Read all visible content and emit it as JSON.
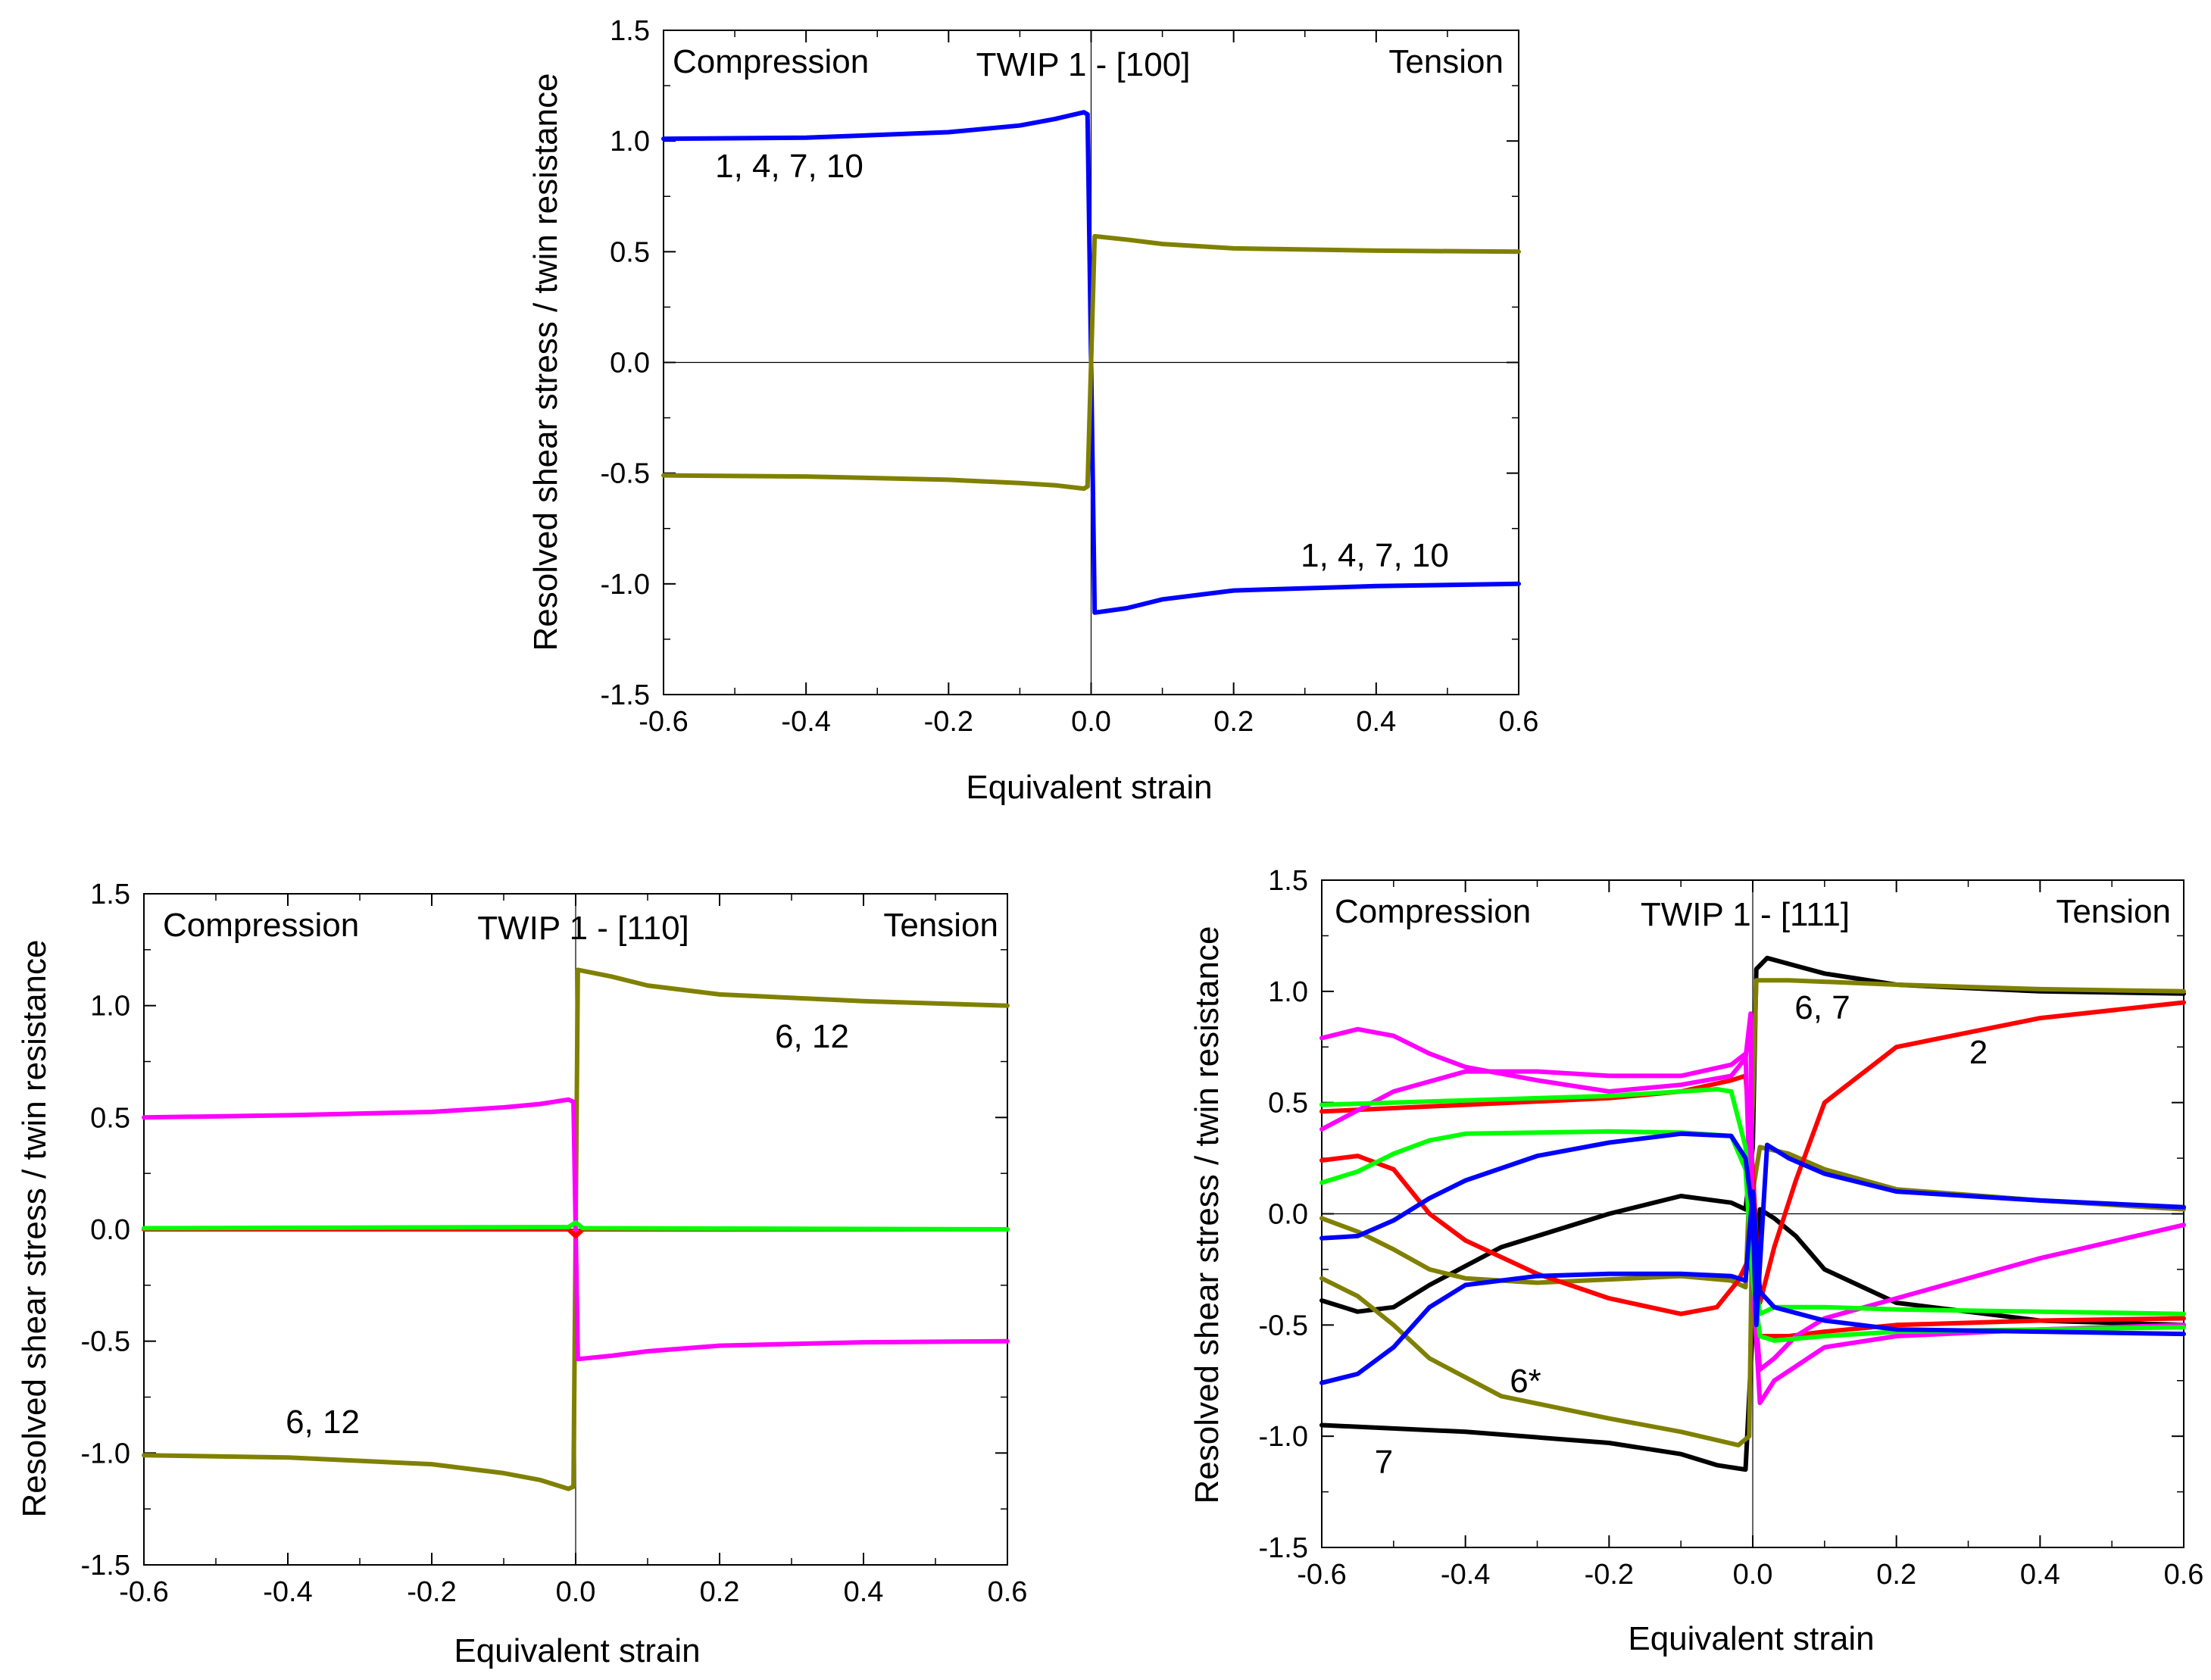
{
  "chart_data": [
    {
      "type": "line",
      "title": "TWIP 1 - [100]",
      "xlabel": "Equivalent strain",
      "ylabel": "Resolved shear stress / twin resistance",
      "xlim": [
        -0.6,
        0.6
      ],
      "ylim": [
        -1.5,
        1.5
      ],
      "xticks": [
        "-0.6",
        "-0.4",
        "-0.2",
        "0.0",
        "0.2",
        "0.4",
        "0.6"
      ],
      "yticks": [
        "1.5",
        "1.0",
        "0.5",
        "0.0",
        "-0.5",
        "-1.0",
        "-1.5"
      ],
      "annotations": [
        {
          "text": "Compression",
          "pos": "top-left"
        },
        {
          "text": "Tension",
          "pos": "top-right"
        },
        {
          "text": "1, 4, 7, 10",
          "x": -0.48,
          "y": 0.88
        },
        {
          "text": "1, 4, 7, 10",
          "x": 0.38,
          "y": -0.88
        }
      ],
      "series": [
        {
          "name": "blue-compression",
          "color": "#0000ff",
          "x": [
            -0.6,
            -0.4,
            -0.2,
            -0.1,
            -0.05,
            -0.01,
            -0.005
          ],
          "y": [
            1.01,
            1.015,
            1.04,
            1.07,
            1.1,
            1.13,
            1.12
          ]
        },
        {
          "name": "blue-tension",
          "color": "#0000ff",
          "x": [
            -0.005,
            0.0,
            0.005,
            0.05,
            0.1,
            0.2,
            0.4,
            0.6
          ],
          "y": [
            1.12,
            0.0,
            -1.13,
            -1.11,
            -1.07,
            -1.03,
            -1.01,
            -1.0
          ]
        },
        {
          "name": "olive-compression",
          "color": "#808000",
          "x": [
            -0.6,
            -0.4,
            -0.2,
            -0.1,
            -0.05,
            -0.01,
            -0.005
          ],
          "y": [
            -0.51,
            -0.515,
            -0.53,
            -0.545,
            -0.555,
            -0.57,
            -0.56
          ]
        },
        {
          "name": "olive-tension",
          "color": "#808000",
          "x": [
            -0.005,
            0.0,
            0.005,
            0.05,
            0.1,
            0.2,
            0.4,
            0.6
          ],
          "y": [
            -0.56,
            0.0,
            0.57,
            0.555,
            0.535,
            0.515,
            0.505,
            0.5
          ]
        }
      ]
    },
    {
      "type": "line",
      "title": "TWIP 1 - [110]",
      "xlabel": "Equivalent strain",
      "ylabel": "Resolved shear stress / twin resistance",
      "xlim": [
        -0.6,
        0.6
      ],
      "ylim": [
        -1.5,
        1.5
      ],
      "xticks": [
        "-0.6",
        "-0.4",
        "-0.2",
        "0.0",
        "0.2",
        "0.4",
        "0.6"
      ],
      "yticks": [
        "1.5",
        "1.0",
        "0.5",
        "0.0",
        "-0.5",
        "-1.0",
        "-1.5"
      ],
      "annotations": [
        {
          "text": "Compression",
          "pos": "top-left"
        },
        {
          "text": "Tension",
          "pos": "top-right"
        },
        {
          "text": "6, 12",
          "x": 0.26,
          "y": 0.84
        },
        {
          "text": "6, 12",
          "x": -0.42,
          "y": -0.88
        }
      ],
      "series": [
        {
          "name": "olive-compression",
          "color": "#808000",
          "x": [
            -0.6,
            -0.4,
            -0.2,
            -0.1,
            -0.05,
            -0.01,
            -0.003
          ],
          "y": [
            -1.01,
            -1.02,
            -1.05,
            -1.09,
            -1.12,
            -1.16,
            -1.15
          ]
        },
        {
          "name": "olive-tension",
          "color": "#808000",
          "x": [
            -0.003,
            0.0,
            0.003,
            0.05,
            0.1,
            0.2,
            0.4,
            0.6
          ],
          "y": [
            -1.15,
            0.0,
            1.16,
            1.13,
            1.09,
            1.05,
            1.02,
            1.0
          ]
        },
        {
          "name": "magenta-compression",
          "color": "#ff00ff",
          "x": [
            -0.6,
            -0.4,
            -0.2,
            -0.1,
            -0.05,
            -0.01,
            -0.003
          ],
          "y": [
            0.5,
            0.51,
            0.525,
            0.545,
            0.56,
            0.58,
            0.57
          ]
        },
        {
          "name": "magenta-tension",
          "color": "#ff00ff",
          "x": [
            -0.003,
            0.0,
            0.003,
            0.05,
            0.1,
            0.2,
            0.4,
            0.6
          ],
          "y": [
            0.57,
            0.0,
            -0.58,
            -0.565,
            -0.545,
            -0.52,
            -0.505,
            -0.5
          ]
        },
        {
          "name": "red-zero",
          "color": "#ff0000",
          "x": [
            -0.6,
            -0.01,
            0.0,
            0.01,
            0.6
          ],
          "y": [
            0.0,
            0.0,
            -0.03,
            0.0,
            0.0
          ]
        },
        {
          "name": "green-zero",
          "color": "#00ff00",
          "x": [
            -0.6,
            -0.01,
            0.0,
            0.01,
            0.6
          ],
          "y": [
            0.005,
            0.01,
            0.03,
            0.005,
            0.0
          ]
        }
      ]
    },
    {
      "type": "line",
      "title": "TWIP 1 - [111]",
      "xlabel": "Equivalent strain",
      "ylabel": "Resolved shear stress / twin resistance",
      "xlim": [
        -0.6,
        0.6
      ],
      "ylim": [
        -1.5,
        1.5
      ],
      "xticks": [
        "-0.6",
        "-0.4",
        "-0.2",
        "0.0",
        "0.2",
        "0.4",
        "0.6"
      ],
      "yticks": [
        "1.5",
        "1.0",
        "0.5",
        "0.0",
        "-0.5",
        "-1.0",
        "-1.5"
      ],
      "annotations": [
        {
          "text": "Compression",
          "pos": "top-left"
        },
        {
          "text": "Tension",
          "pos": "top-right"
        },
        {
          "text": "6, 7",
          "x": 0.07,
          "y": 0.87
        },
        {
          "text": "2",
          "x": 0.63,
          "y": 0.75
        },
        {
          "text": "6*",
          "x": -0.26,
          "y": -0.74
        },
        {
          "text": "7",
          "x": -0.41,
          "y": -1.12
        }
      ],
      "series": [
        {
          "name": "black-upper",
          "color": "#000000",
          "x": [
            -0.6,
            -0.55,
            -0.5,
            -0.45,
            -0.35,
            -0.2,
            -0.1,
            -0.03,
            -0.01,
            0.0,
            0.005,
            0.02,
            0.1,
            0.2,
            0.4,
            0.6
          ],
          "y": [
            -0.39,
            -0.44,
            -0.42,
            -0.32,
            -0.15,
            0.0,
            0.08,
            0.05,
            0.02,
            0.3,
            1.1,
            1.15,
            1.08,
            1.03,
            1.0,
            0.99
          ]
        },
        {
          "name": "black-lower",
          "color": "#000000",
          "x": [
            -0.6,
            -0.4,
            -0.2,
            -0.1,
            -0.05,
            -0.01,
            0.0,
            0.01,
            0.03,
            0.06,
            0.1,
            0.2,
            0.4,
            0.6
          ],
          "y": [
            -0.95,
            -0.98,
            -1.03,
            -1.08,
            -1.13,
            -1.15,
            -0.5,
            0.02,
            -0.02,
            -0.1,
            -0.25,
            -0.4,
            -0.48,
            -0.5
          ]
        },
        {
          "name": "olive-upper",
          "color": "#808000",
          "x": [
            -0.6,
            -0.55,
            -0.5,
            -0.45,
            -0.4,
            -0.3,
            -0.1,
            -0.03,
            -0.01,
            0.0,
            0.005,
            0.05,
            0.2,
            0.4,
            0.6
          ],
          "y": [
            -0.02,
            -0.08,
            -0.16,
            -0.25,
            -0.29,
            -0.31,
            -0.28,
            -0.3,
            -0.33,
            0.5,
            1.05,
            1.05,
            1.03,
            1.01,
            1.0
          ]
        },
        {
          "name": "olive-lower",
          "color": "#808000",
          "x": [
            -0.6,
            -0.55,
            -0.5,
            -0.45,
            -0.35,
            -0.2,
            -0.1,
            -0.02,
            -0.005,
            0.0,
            0.01,
            0.05,
            0.1,
            0.2,
            0.4,
            0.6
          ],
          "y": [
            -0.29,
            -0.37,
            -0.5,
            -0.65,
            -0.82,
            -0.92,
            -0.98,
            -1.04,
            -1.0,
            0.1,
            0.3,
            0.27,
            0.2,
            0.11,
            0.06,
            0.02
          ]
        },
        {
          "name": "red-upper",
          "color": "#ff0000",
          "x": [
            -0.6,
            -0.4,
            -0.2,
            -0.1,
            -0.03,
            -0.01,
            0.0,
            0.01,
            0.03,
            0.06,
            0.1,
            0.2,
            0.4,
            0.6
          ],
          "y": [
            0.46,
            0.49,
            0.52,
            0.55,
            0.6,
            0.62,
            0.2,
            -0.4,
            -0.15,
            0.15,
            0.5,
            0.75,
            0.88,
            0.95
          ]
        },
        {
          "name": "red-lower",
          "color": "#ff0000",
          "x": [
            -0.6,
            -0.55,
            -0.5,
            -0.45,
            -0.4,
            -0.3,
            -0.2,
            -0.1,
            -0.05,
            -0.02,
            -0.005,
            0.0,
            0.01,
            0.05,
            0.1,
            0.2,
            0.4,
            0.6
          ],
          "y": [
            0.24,
            0.26,
            0.2,
            0.0,
            -0.12,
            -0.27,
            -0.38,
            -0.45,
            -0.42,
            -0.3,
            -0.2,
            -0.3,
            -0.55,
            -0.55,
            -0.53,
            -0.5,
            -0.48,
            -0.47
          ]
        },
        {
          "name": "magenta-upper",
          "color": "#ff00ff",
          "x": [
            -0.6,
            -0.55,
            -0.5,
            -0.45,
            -0.4,
            -0.3,
            -0.2,
            -0.1,
            -0.03,
            -0.01,
            -0.003,
            0.0,
            0.01,
            0.03,
            0.06,
            0.1,
            0.2,
            0.4,
            0.6
          ],
          "y": [
            0.79,
            0.83,
            0.8,
            0.72,
            0.66,
            0.6,
            0.55,
            0.58,
            0.62,
            0.7,
            0.9,
            -0.3,
            -0.7,
            -0.65,
            -0.55,
            -0.47,
            -0.38,
            -0.2,
            -0.05
          ]
        },
        {
          "name": "magenta-lower",
          "color": "#ff00ff",
          "x": [
            -0.6,
            -0.5,
            -0.4,
            -0.3,
            -0.2,
            -0.1,
            -0.03,
            -0.01,
            0.0,
            0.01,
            0.03,
            0.1,
            0.2,
            0.4,
            0.6
          ],
          "y": [
            0.38,
            0.55,
            0.64,
            0.64,
            0.62,
            0.62,
            0.67,
            0.72,
            -0.3,
            -0.85,
            -0.75,
            -0.6,
            -0.55,
            -0.52,
            -0.5
          ]
        },
        {
          "name": "green-upper",
          "color": "#00ff00",
          "x": [
            -0.6,
            -0.4,
            -0.2,
            -0.1,
            -0.05,
            -0.03,
            -0.01,
            0.0,
            0.01,
            0.03,
            0.1,
            0.2,
            0.4,
            0.6
          ],
          "y": [
            0.49,
            0.51,
            0.53,
            0.55,
            0.56,
            0.55,
            0.3,
            -0.2,
            -0.45,
            -0.42,
            -0.42,
            -0.43,
            -0.44,
            -0.45
          ]
        },
        {
          "name": "green-lower",
          "color": "#00ff00",
          "x": [
            -0.6,
            -0.55,
            -0.5,
            -0.45,
            -0.4,
            -0.3,
            -0.2,
            -0.1,
            -0.03,
            -0.01,
            0.0,
            0.01,
            0.03,
            0.1,
            0.2,
            0.4,
            0.6
          ],
          "y": [
            0.14,
            0.19,
            0.27,
            0.33,
            0.36,
            0.365,
            0.37,
            0.365,
            0.35,
            0.2,
            -0.3,
            -0.55,
            -0.57,
            -0.55,
            -0.53,
            -0.52,
            -0.51
          ]
        },
        {
          "name": "blue-upper",
          "color": "#0000ff",
          "x": [
            -0.6,
            -0.55,
            -0.5,
            -0.45,
            -0.4,
            -0.3,
            -0.2,
            -0.1,
            -0.03,
            -0.01,
            0.0,
            0.005,
            0.02,
            0.05,
            0.1,
            0.2,
            0.4,
            0.6
          ],
          "y": [
            -0.11,
            -0.1,
            -0.03,
            0.07,
            0.15,
            0.26,
            0.32,
            0.36,
            0.35,
            0.25,
            0.0,
            -0.5,
            0.31,
            0.25,
            0.18,
            0.1,
            0.06,
            0.03
          ]
        },
        {
          "name": "blue-lower",
          "color": "#0000ff",
          "x": [
            -0.6,
            -0.55,
            -0.5,
            -0.45,
            -0.4,
            -0.3,
            -0.2,
            -0.1,
            -0.03,
            -0.01,
            0.0,
            0.01,
            0.03,
            0.1,
            0.2,
            0.4,
            0.6
          ],
          "y": [
            -0.76,
            -0.72,
            -0.6,
            -0.42,
            -0.32,
            -0.28,
            -0.27,
            -0.27,
            -0.28,
            -0.3,
            0.1,
            -0.35,
            -0.42,
            -0.48,
            -0.52,
            -0.53,
            -0.54
          ]
        }
      ]
    }
  ]
}
